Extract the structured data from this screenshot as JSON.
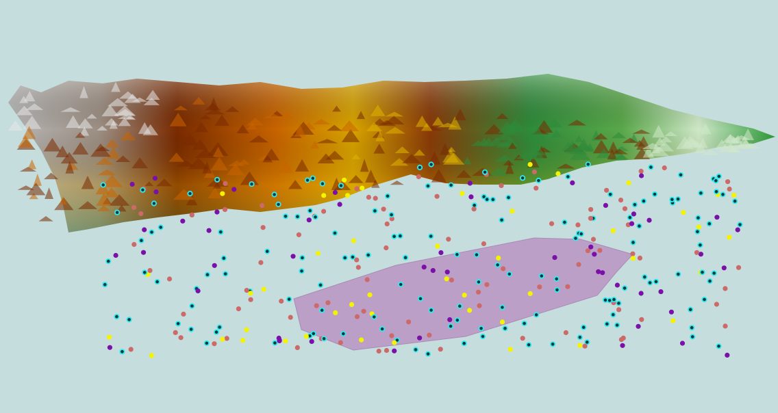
{
  "scene": {
    "background": "#c5dddd",
    "terrain_colors": {
      "snow": "#e6e6e6",
      "rock": "#8a7a6a",
      "brown": "#7a2a00",
      "orange": "#c86400",
      "yellow": "#e0b400",
      "green": "#2e8b3a",
      "light": "#cfe8c8"
    },
    "polygon_color": "#bb9fc6",
    "point_types": [
      {
        "icon": "cyan-ring-point",
        "fill": "#0b3a3a",
        "stroke": "#33e8f0"
      },
      {
        "icon": "salmon-point",
        "fill": "#cc6a6a",
        "stroke": "#cc6a6a"
      },
      {
        "icon": "purple-point",
        "fill": "#7a10a8",
        "stroke": "#7a10a8"
      },
      {
        "icon": "yellow-point",
        "fill": "#f4f400",
        "stroke": "#f4f400"
      }
    ]
  }
}
